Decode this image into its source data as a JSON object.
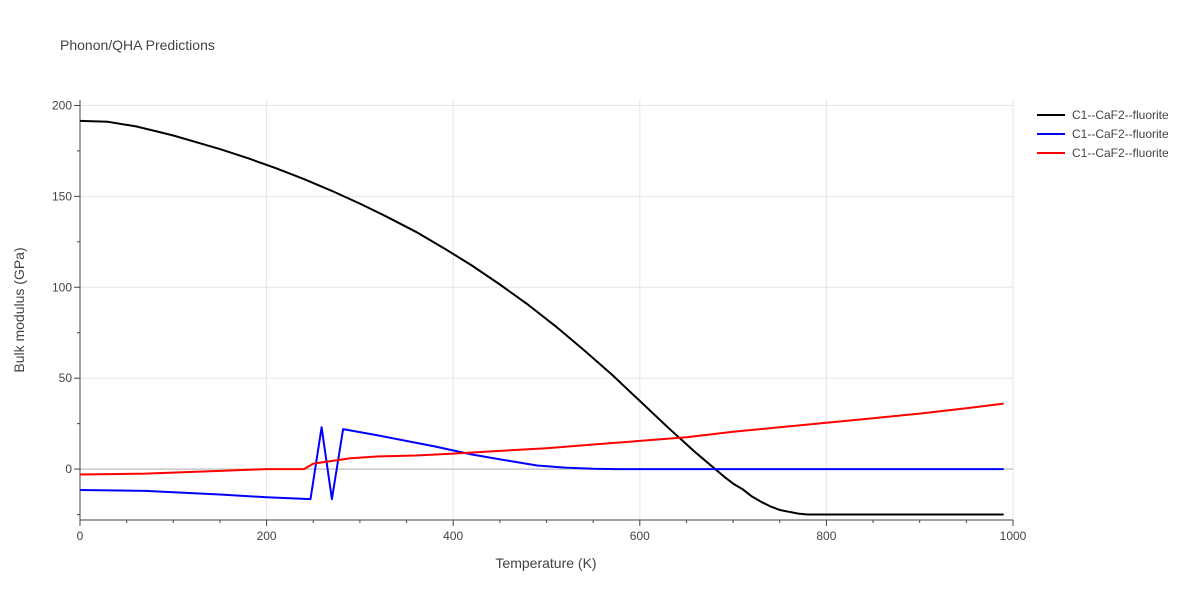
{
  "chart_data": {
    "type": "line",
    "title": "Phonon/QHA Predictions",
    "xlabel": "Temperature (K)",
    "ylabel": "Bulk modulus (GPa)",
    "xlim": [
      0,
      1000
    ],
    "ylim": [
      -28,
      203
    ],
    "x_ticks": [
      0,
      200,
      400,
      600,
      800,
      1000
    ],
    "y_ticks": [
      0,
      50,
      100,
      150,
      200
    ],
    "grid": true,
    "legend_position": "top-right",
    "series": [
      {
        "name": "C1--CaF2--fluorite",
        "color": "#000000",
        "x": [
          0,
          30,
          60,
          80,
          100,
          120,
          150,
          180,
          210,
          240,
          270,
          300,
          330,
          360,
          390,
          420,
          450,
          480,
          510,
          540,
          570,
          600,
          630,
          660,
          690,
          700,
          710,
          720,
          730,
          740,
          750,
          760,
          770,
          780,
          800,
          850,
          900,
          950,
          990
        ],
        "y": [
          191.5,
          191,
          188.5,
          186,
          183.5,
          180.5,
          176,
          171,
          165.5,
          159.5,
          153,
          146,
          138.5,
          130.5,
          121.5,
          112,
          101.5,
          90.5,
          78.5,
          65.5,
          52,
          37.5,
          23,
          9,
          -4,
          -8,
          -11,
          -15,
          -18,
          -20.5,
          -22.5,
          -23.5,
          -24.5,
          -25,
          -25,
          -25,
          -25,
          -25,
          -25
        ]
      },
      {
        "name": "C1--CaF2--fluorite",
        "color": "#0000ff",
        "x": [
          0,
          70,
          150,
          200,
          247,
          259,
          270,
          282,
          320,
          380,
          420,
          460,
          490,
          520,
          550,
          575,
          600,
          700,
          800,
          900,
          990
        ],
        "y": [
          -11.5,
          -12,
          -14,
          -15.5,
          -16.5,
          23,
          -16.5,
          22,
          18.5,
          12.5,
          8,
          4.5,
          2,
          0.8,
          0.2,
          0,
          0,
          0,
          0,
          0,
          0
        ]
      },
      {
        "name": "C1--CaF2--fluorite",
        "color": "#ff0000",
        "x": [
          0,
          70,
          150,
          200,
          240,
          250,
          290,
          320,
          360,
          400,
          450,
          500,
          550,
          600,
          650,
          700,
          750,
          800,
          850,
          900,
          950,
          990
        ],
        "y": [
          -3,
          -2.5,
          -1,
          0,
          0,
          3,
          6,
          7,
          7.5,
          8.5,
          10,
          11.5,
          13.5,
          15.5,
          17.5,
          20.5,
          23,
          25.5,
          28,
          30.5,
          33.5,
          36
        ]
      }
    ]
  }
}
